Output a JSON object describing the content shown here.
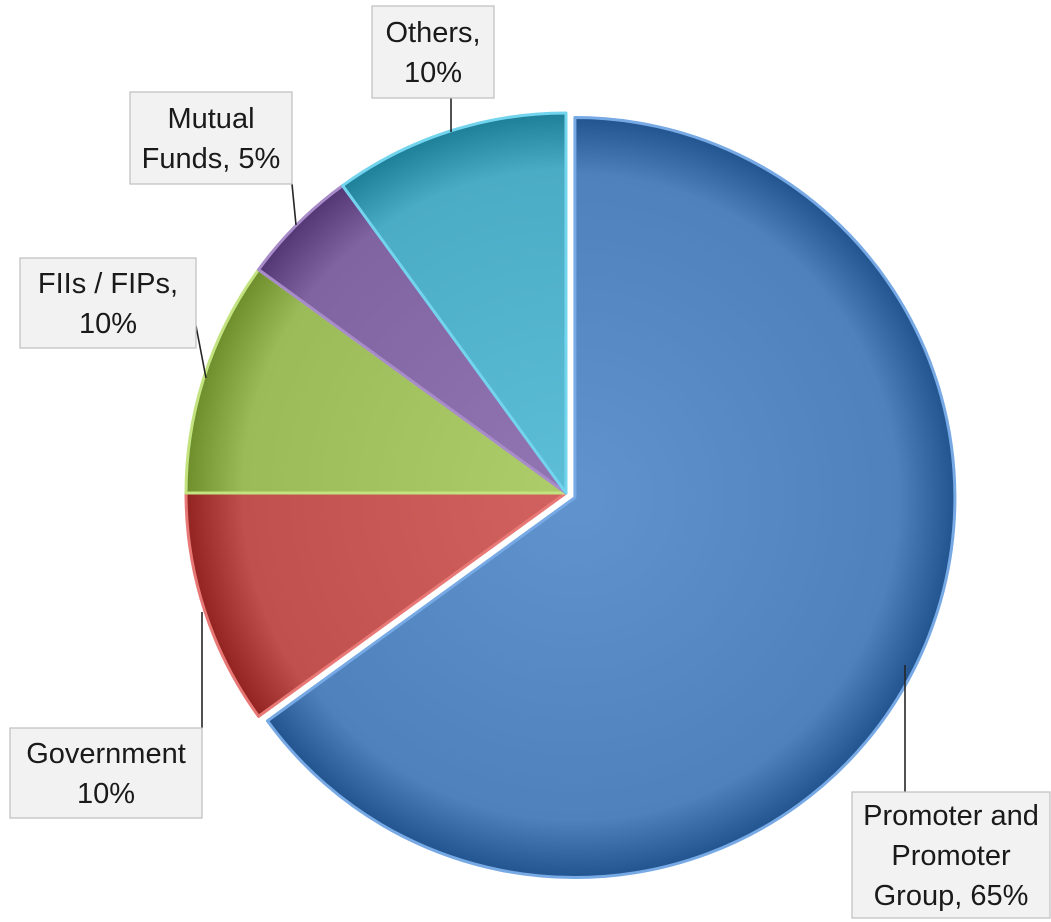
{
  "chart_data": {
    "type": "pie",
    "start_angle_deg": 0,
    "direction": "clockwise",
    "slices": [
      {
        "name": "Promoter and Promoter Group",
        "value": 65,
        "label_lines": [
          "Promoter and",
          "Promoter",
          "Group, 65%"
        ],
        "color": "#4f81bd",
        "exploded": true
      },
      {
        "name": "Government",
        "value": 10,
        "label_lines": [
          "Government",
          "10%"
        ],
        "color": "#c0504d",
        "exploded": false
      },
      {
        "name": "FIIs / FIPs",
        "value": 10,
        "label_lines": [
          "FIIs / FIPs,",
          "10%"
        ],
        "color": "#9bbb59",
        "exploded": false
      },
      {
        "name": "Mutual Funds",
        "value": 5,
        "label_lines": [
          "Mutual",
          "Funds, 5%"
        ],
        "color": "#8064a2",
        "exploded": false
      },
      {
        "name": "Others",
        "value": 10,
        "label_lines": [
          "Others,",
          "10%"
        ],
        "color": "#4bacc6",
        "exploded": false
      }
    ],
    "legend": "none"
  }
}
